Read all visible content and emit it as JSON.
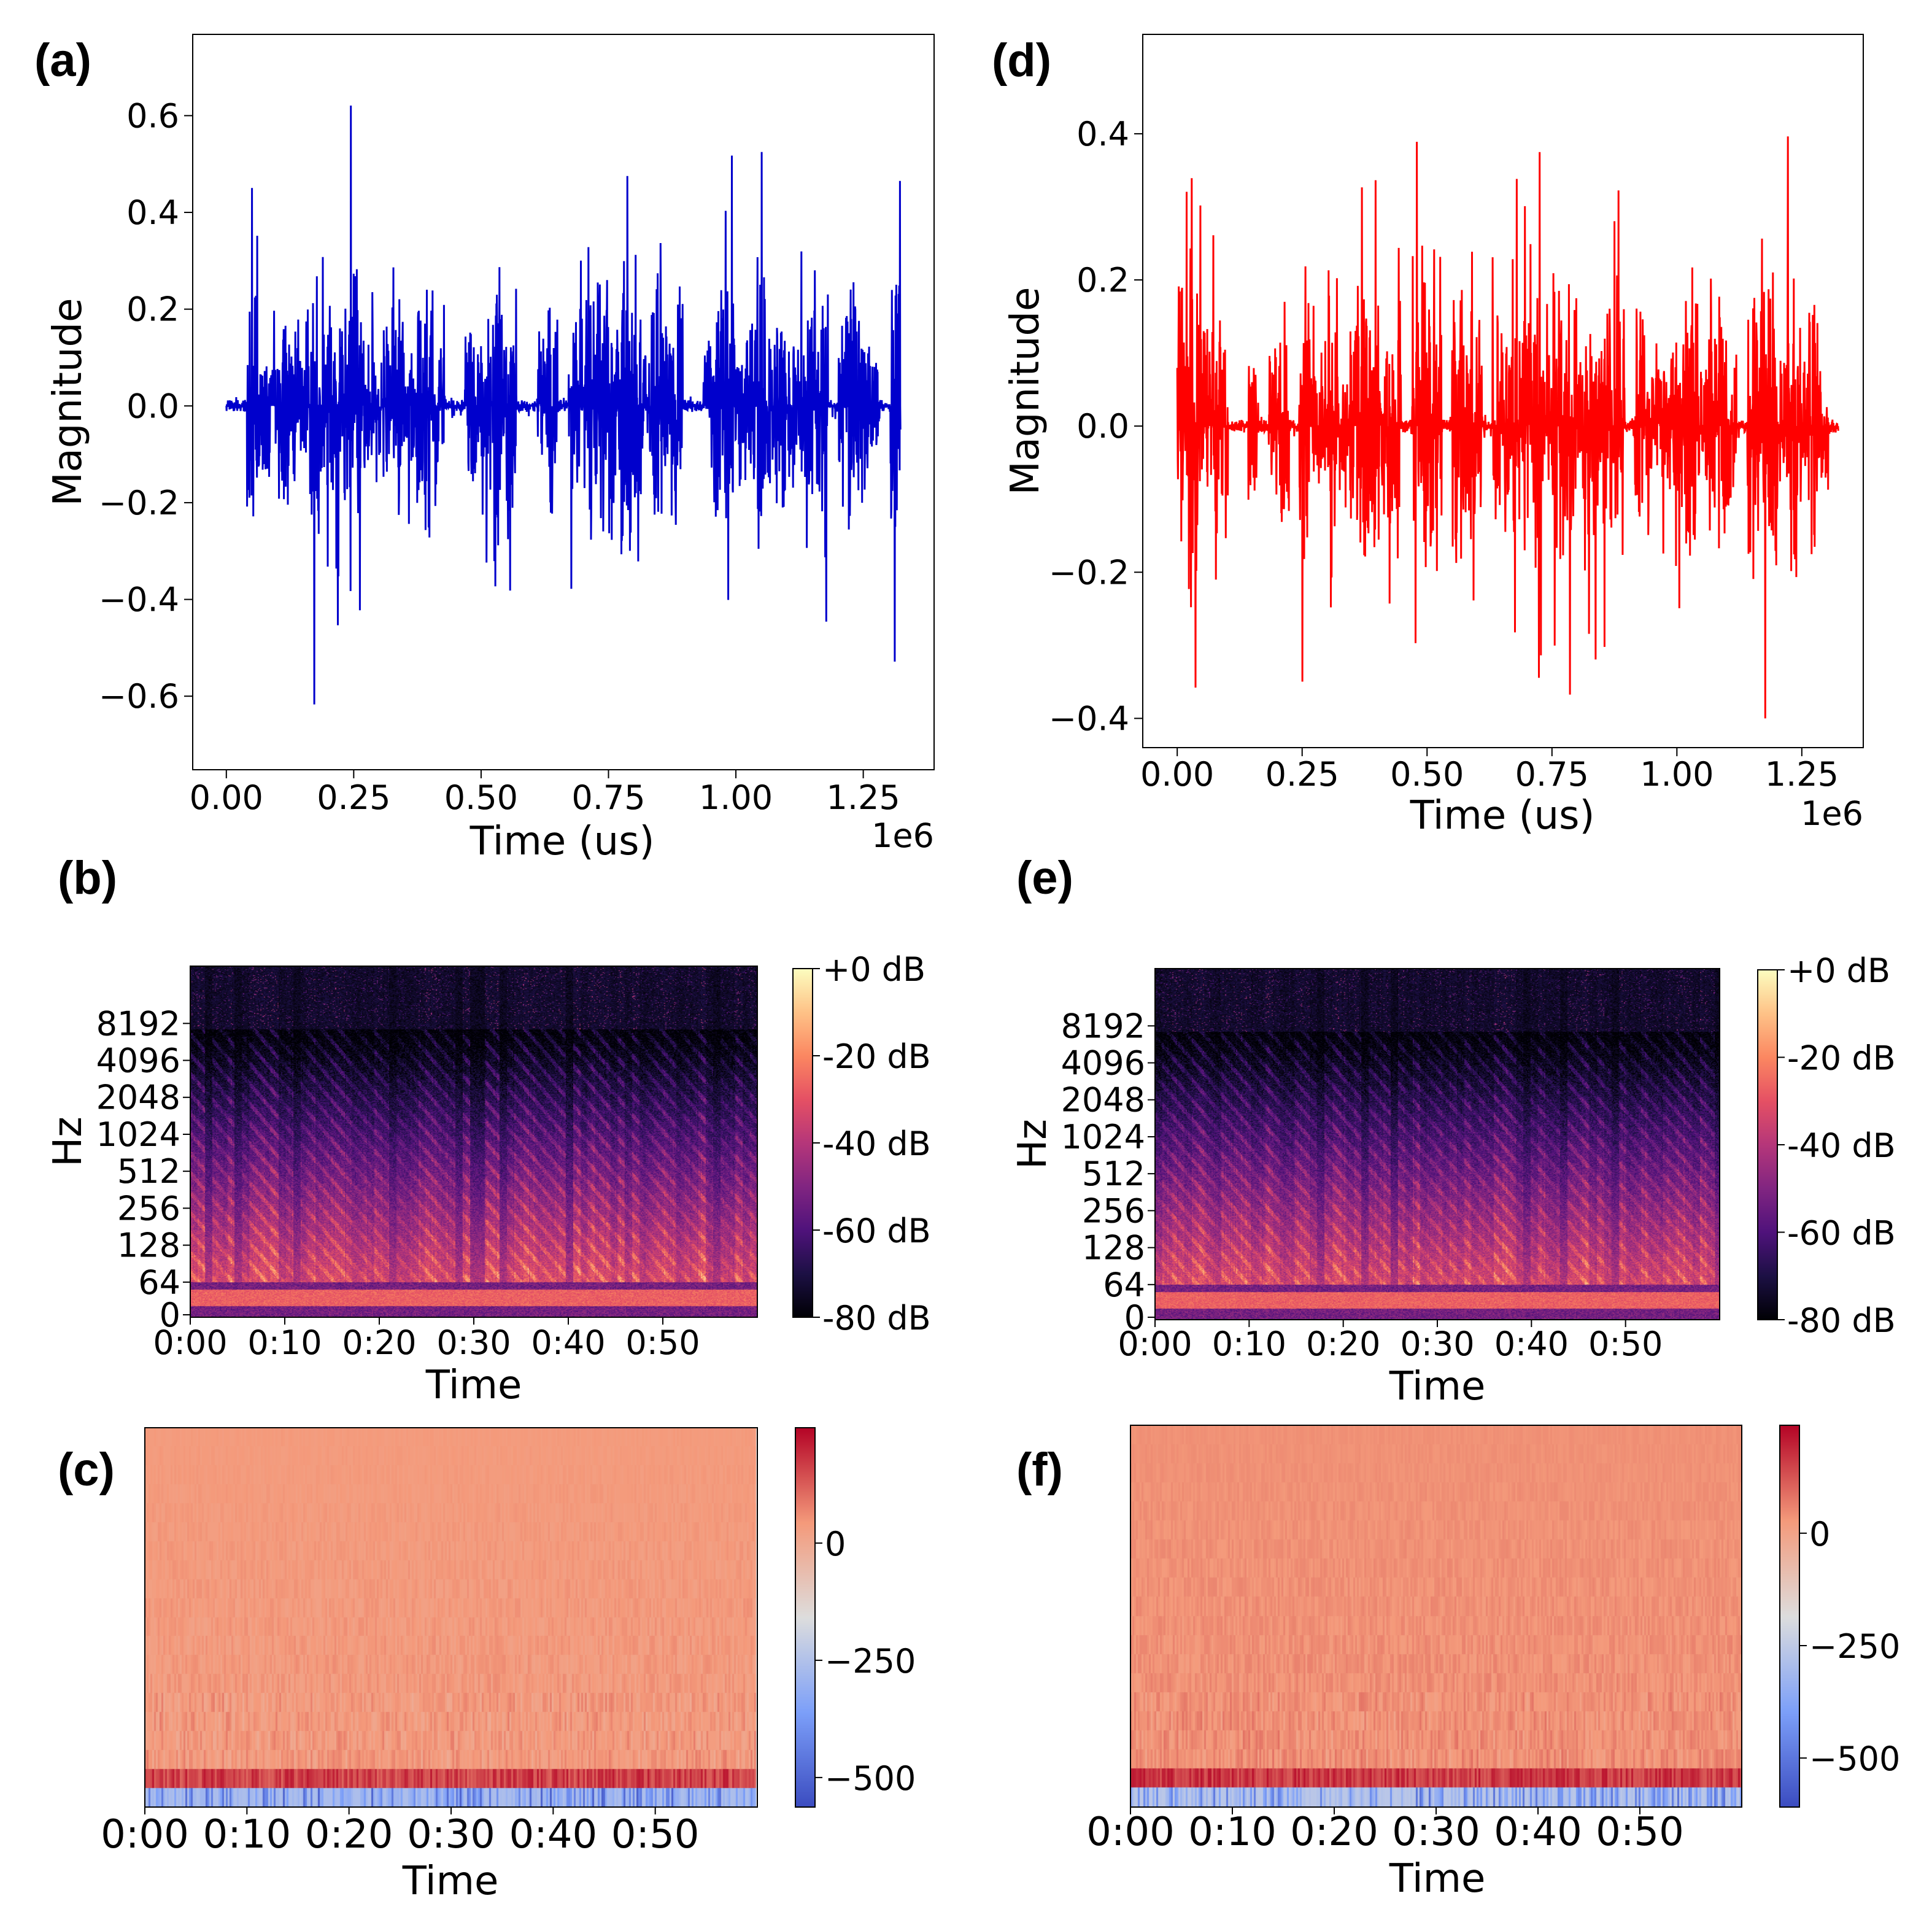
{
  "panels": [
    "(a)",
    "(b)",
    "(c)",
    "(d)",
    "(e)",
    "(f)"
  ],
  "chart_data": [
    {
      "id": "a",
      "type": "line",
      "color": "#0000cc",
      "xlabel": "Time (us)",
      "ylabel": "Magnitude",
      "x_offset_label": "1e6",
      "xticks": [
        0,
        0.25,
        0.5,
        0.75,
        1.0,
        1.25
      ],
      "xtick_labels": [
        "0.00",
        "0.25",
        "0.50",
        "0.75",
        "1.00",
        "1.25"
      ],
      "yticks": [
        -0.6,
        -0.4,
        -0.2,
        0.0,
        0.2,
        0.4,
        0.6
      ],
      "ytick_labels": [
        "−0.6",
        "−0.4",
        "−0.2",
        "0.0",
        "0.2",
        "0.4",
        "0.6"
      ],
      "xlim": [
        -0.066,
        1.389
      ],
      "ylim": [
        -0.752,
        0.768
      ],
      "x_end": 1.323,
      "peak_max": 0.7,
      "peak_min": -0.69
    },
    {
      "id": "b",
      "type": "heatmap",
      "colormap": "magma",
      "xlabel": "Time",
      "ylabel": "Hz",
      "xtick_labels": [
        "0:00",
        "0:10",
        "0:20",
        "0:30",
        "0:40",
        "0:50"
      ],
      "xticks": [
        0,
        10,
        20,
        30,
        40,
        50
      ],
      "xlim": [
        0,
        60
      ],
      "ytick_labels": [
        "0",
        "64",
        "128",
        "256",
        "512",
        "1024",
        "2048",
        "4096",
        "8192"
      ],
      "colorbar_ticks": [
        "+0 dB",
        "-20 dB",
        "-40 dB",
        "-60 dB",
        "-80 dB"
      ],
      "colorbar_range": [
        -80,
        0
      ]
    },
    {
      "id": "c",
      "type": "heatmap",
      "colormap": "coolwarm",
      "xlabel": "Time",
      "xtick_labels": [
        "0:00",
        "0:10",
        "0:20",
        "0:30",
        "0:40",
        "0:50"
      ],
      "xticks": [
        0,
        10,
        20,
        30,
        40,
        50
      ],
      "xlim": [
        0,
        60
      ],
      "colorbar_ticks": [
        "0",
        "−250",
        "−500"
      ],
      "colorbar_values": [
        0,
        -250,
        -500
      ],
      "colorbar_range": [
        -563,
        246
      ]
    },
    {
      "id": "d",
      "type": "line",
      "color": "#ff0000",
      "xlabel": "Time (us)",
      "ylabel": "Magnitude",
      "x_offset_label": "1e6",
      "xticks": [
        0,
        0.25,
        0.5,
        0.75,
        1.0,
        1.25
      ],
      "xtick_labels": [
        "0.00",
        "0.25",
        "0.50",
        "0.75",
        "1.00",
        "1.25"
      ],
      "yticks": [
        -0.4,
        -0.2,
        0.0,
        0.2,
        0.4
      ],
      "ytick_labels": [
        "−0.4",
        "−0.2",
        "0.0",
        "0.2",
        "0.4"
      ],
      "xlim": [
        -0.069,
        1.373
      ],
      "ylim": [
        -0.44,
        0.536
      ],
      "x_end": 1.323,
      "peak_max": 0.49,
      "peak_min": -0.4
    },
    {
      "id": "e",
      "type": "heatmap",
      "colormap": "magma",
      "xlabel": "Time",
      "ylabel": "Hz",
      "xtick_labels": [
        "0:00",
        "0:10",
        "0:20",
        "0:30",
        "0:40",
        "0:50"
      ],
      "xticks": [
        0,
        10,
        20,
        30,
        40,
        50
      ],
      "xlim": [
        0,
        60
      ],
      "ytick_labels": [
        "0",
        "64",
        "128",
        "256",
        "512",
        "1024",
        "2048",
        "4096",
        "8192"
      ],
      "colorbar_ticks": [
        "+0 dB",
        "-20 dB",
        "-40 dB",
        "-60 dB",
        "-80 dB"
      ],
      "colorbar_range": [
        -80,
        0
      ]
    },
    {
      "id": "f",
      "type": "heatmap",
      "colormap": "coolwarm",
      "xlabel": "Time",
      "xtick_labels": [
        "0:00",
        "0:10",
        "0:20",
        "0:30",
        "0:40",
        "0:50"
      ],
      "xticks": [
        0,
        10,
        20,
        30,
        40,
        50
      ],
      "xlim": [
        0,
        60
      ],
      "colorbar_ticks": [
        "0",
        "−250",
        "−500"
      ],
      "colorbar_values": [
        0,
        -250,
        -500
      ],
      "colorbar_range": [
        -609,
        240
      ]
    }
  ]
}
